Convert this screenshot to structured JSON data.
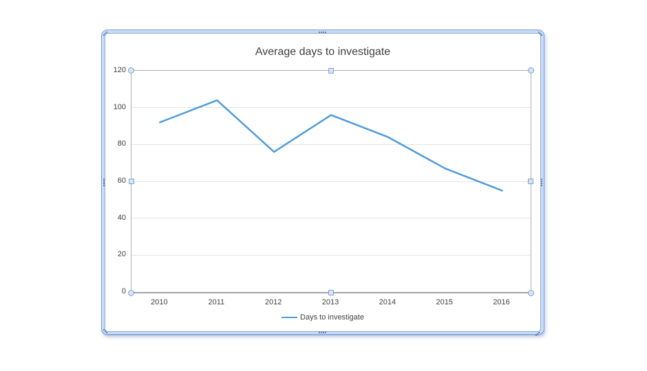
{
  "chart_data": {
    "type": "line",
    "title": "Average days to investigate",
    "categories": [
      "2010",
      "2011",
      "2012",
      "2013",
      "2014",
      "2015",
      "2016"
    ],
    "series": [
      {
        "name": "Days to investigate",
        "color": "#4e9cd9",
        "values": [
          92,
          104,
          76,
          96,
          84,
          67,
          55
        ]
      }
    ],
    "xlabel": "",
    "ylabel": "",
    "ylim": [
      0,
      120
    ],
    "yticks": [
      0,
      20,
      40,
      60,
      80,
      100,
      120
    ],
    "grid": true,
    "legend_position": "bottom-center"
  },
  "selection": {
    "state": "chart-selected",
    "frame_fill": "#c9dcf5",
    "frame_border": "#7e9fd9",
    "handle_fill": "#d8e5f7",
    "handle_border": "#7f9ccf",
    "plot_outline": "#adadad",
    "text_color": "#3f3f3f"
  }
}
